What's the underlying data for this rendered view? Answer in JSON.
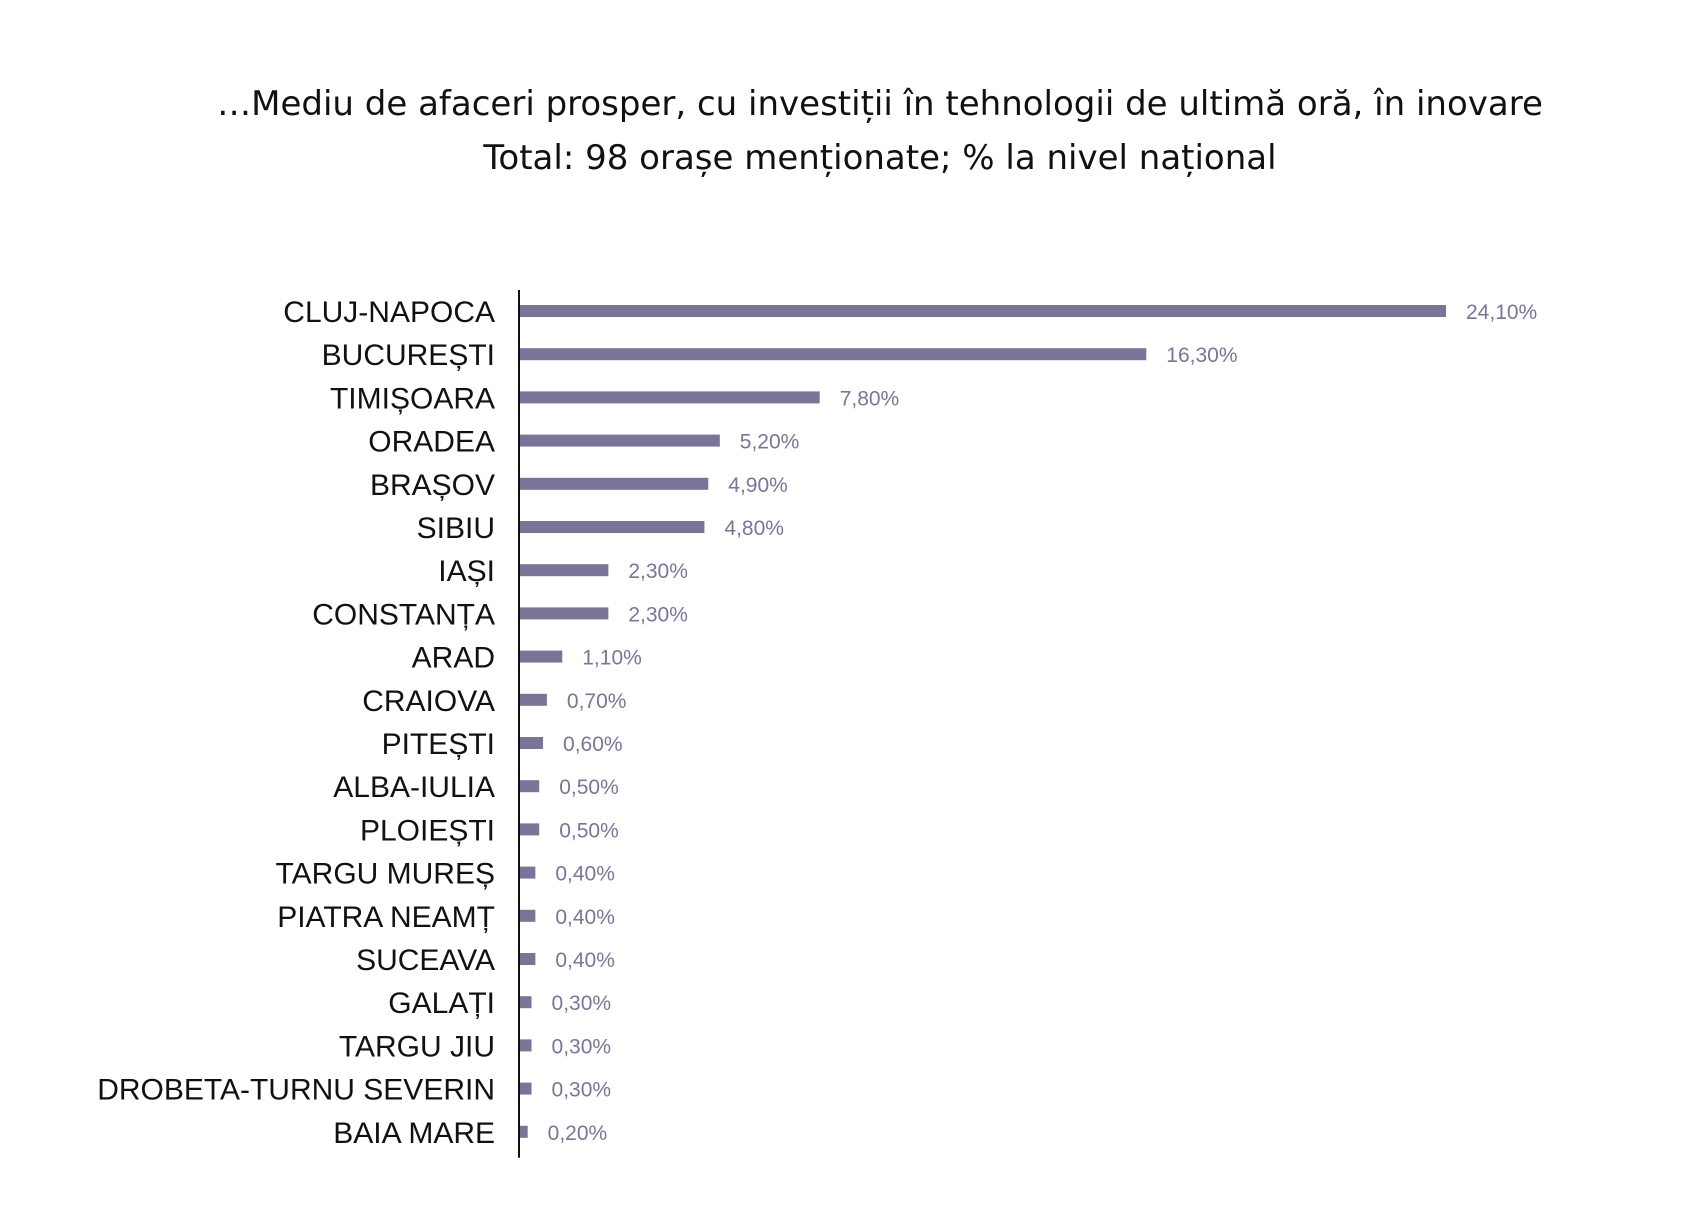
{
  "chart_data": {
    "type": "bar",
    "orientation": "horizontal",
    "title": "…Mediu de afaceri prosper, cu investiții în tehnologii de ultimă oră, în inovare",
    "subtitle": "Total: 98 orașe menționate; % la nivel național",
    "categories": [
      "CLUJ-NAPOCA",
      "BUCUREȘTI",
      "TIMIȘOARA",
      "ORADEA",
      "BRAȘOV",
      "SIBIU",
      "IAȘI",
      "CONSTANȚA",
      "ARAD",
      "CRAIOVA",
      "PITEȘTI",
      "ALBA-IULIA",
      "PLOIEȘTI",
      "TARGU MUREȘ",
      "PIATRA NEAMȚ",
      "SUCEAVA",
      "GALAȚI",
      "TARGU JIU",
      "DROBETA-TURNU SEVERIN",
      "BAIA MARE"
    ],
    "values": [
      24.1,
      16.3,
      7.8,
      5.2,
      4.9,
      4.8,
      2.3,
      2.3,
      1.1,
      0.7,
      0.6,
      0.5,
      0.5,
      0.4,
      0.4,
      0.4,
      0.3,
      0.3,
      0.3,
      0.2
    ],
    "value_labels": [
      "24,10%",
      "16,30%",
      "7,80%",
      "5,20%",
      "4,90%",
      "4,80%",
      "2,30%",
      "2,30%",
      "1,10%",
      "0,70%",
      "0,60%",
      "0,50%",
      "0,50%",
      "0,40%",
      "0,40%",
      "0,40%",
      "0,30%",
      "0,30%",
      "0,30%",
      "0,20%"
    ],
    "xlabel": "",
    "ylabel": "",
    "xlim": [
      0,
      25
    ],
    "grid": false,
    "legend": "none",
    "bar_color": "#7a7598"
  }
}
